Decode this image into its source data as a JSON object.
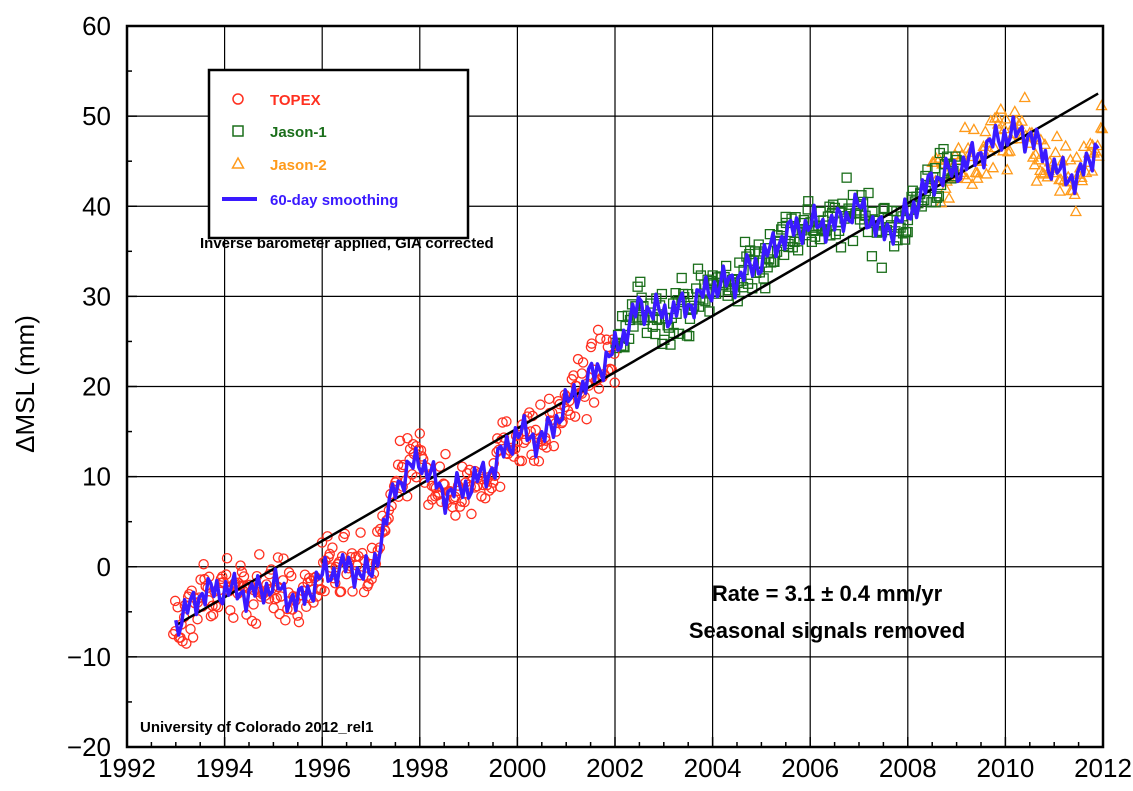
{
  "chart_data": {
    "type": "scatter",
    "xlim": [
      1992,
      2012
    ],
    "ylim": [
      -20,
      60
    ],
    "x_ticks": [
      1992,
      1994,
      1996,
      1998,
      2000,
      2002,
      2004,
      2006,
      2008,
      2010,
      2012
    ],
    "y_ticks": [
      -20,
      -10,
      0,
      10,
      20,
      30,
      40,
      50,
      60
    ],
    "x_tick_labels": [
      "1992",
      "1994",
      "1996",
      "1998",
      "2000",
      "2002",
      "2004",
      "2006",
      "2008",
      "2010",
      "2012"
    ],
    "y_tick_labels": [
      "−20",
      "−10",
      "0",
      "10",
      "20",
      "30",
      "40",
      "50",
      "60"
    ],
    "ylabel": "ΔMSL (mm)",
    "xlabel": "",
    "grid": true,
    "legend_position": "top-left",
    "series": [
      {
        "name": "TOPEX",
        "marker": "circle",
        "color": "#ff3020",
        "x_range": [
          1992.95,
          2002.0
        ],
        "approx_count": 340
      },
      {
        "name": "Jason-1",
        "marker": "square",
        "color": "#1a6e1a",
        "x_range": [
          2002.0,
          2009.0
        ],
        "approx_count": 250
      },
      {
        "name": "Jason-2",
        "marker": "triangle",
        "color": "#ff9a1a",
        "x_range": [
          2008.5,
          2012.0
        ],
        "approx_count": 120
      },
      {
        "name": "60-day smoothing",
        "marker": "line",
        "color": "#3a1aff",
        "x": [
          1993.0,
          1993.5,
          1994.0,
          1994.5,
          1995.0,
          1995.5,
          1996.0,
          1996.5,
          1997.0,
          1997.5,
          1998.0,
          1998.5,
          1999.0,
          1999.5,
          2000.0,
          2000.5,
          2001.0,
          2001.5,
          2002.0,
          2002.5,
          2003.0,
          2003.5,
          2004.0,
          2004.5,
          2005.0,
          2005.5,
          2006.0,
          2006.5,
          2007.0,
          2007.5,
          2008.0,
          2008.5,
          2009.0,
          2009.5,
          2010.0,
          2010.5,
          2011.0,
          2011.5,
          2011.9
        ],
        "y": [
          -6.5,
          -3,
          -2.5,
          -3,
          -2,
          -4,
          -1,
          0,
          -1,
          9,
          12,
          8,
          9,
          11,
          15,
          14,
          18,
          21,
          24,
          29,
          28,
          29,
          31,
          32,
          34,
          37,
          38,
          38,
          40,
          37,
          39,
          43,
          44,
          46,
          48,
          48,
          44,
          43,
          47
        ]
      },
      {
        "name": "",
        "type": "trend-line",
        "color": "#000000",
        "x": [
          1993.0,
          2011.9
        ],
        "y": [
          -6.5,
          52.5
        ]
      }
    ],
    "annotations": {
      "footer_note": "Inverse barometer applied, GIA corrected",
      "rate": "Rate = 3.1 ± 0.4 mm/yr",
      "seasonal": "Seasonal signals removed",
      "credit": "University of Colorado 2012_rel1"
    }
  },
  "colors": {
    "topex": "#ff3020",
    "jason1": "#1a6e1a",
    "jason2": "#ff9a1a",
    "smoothing": "#3a1aff",
    "trend": "#000000"
  }
}
